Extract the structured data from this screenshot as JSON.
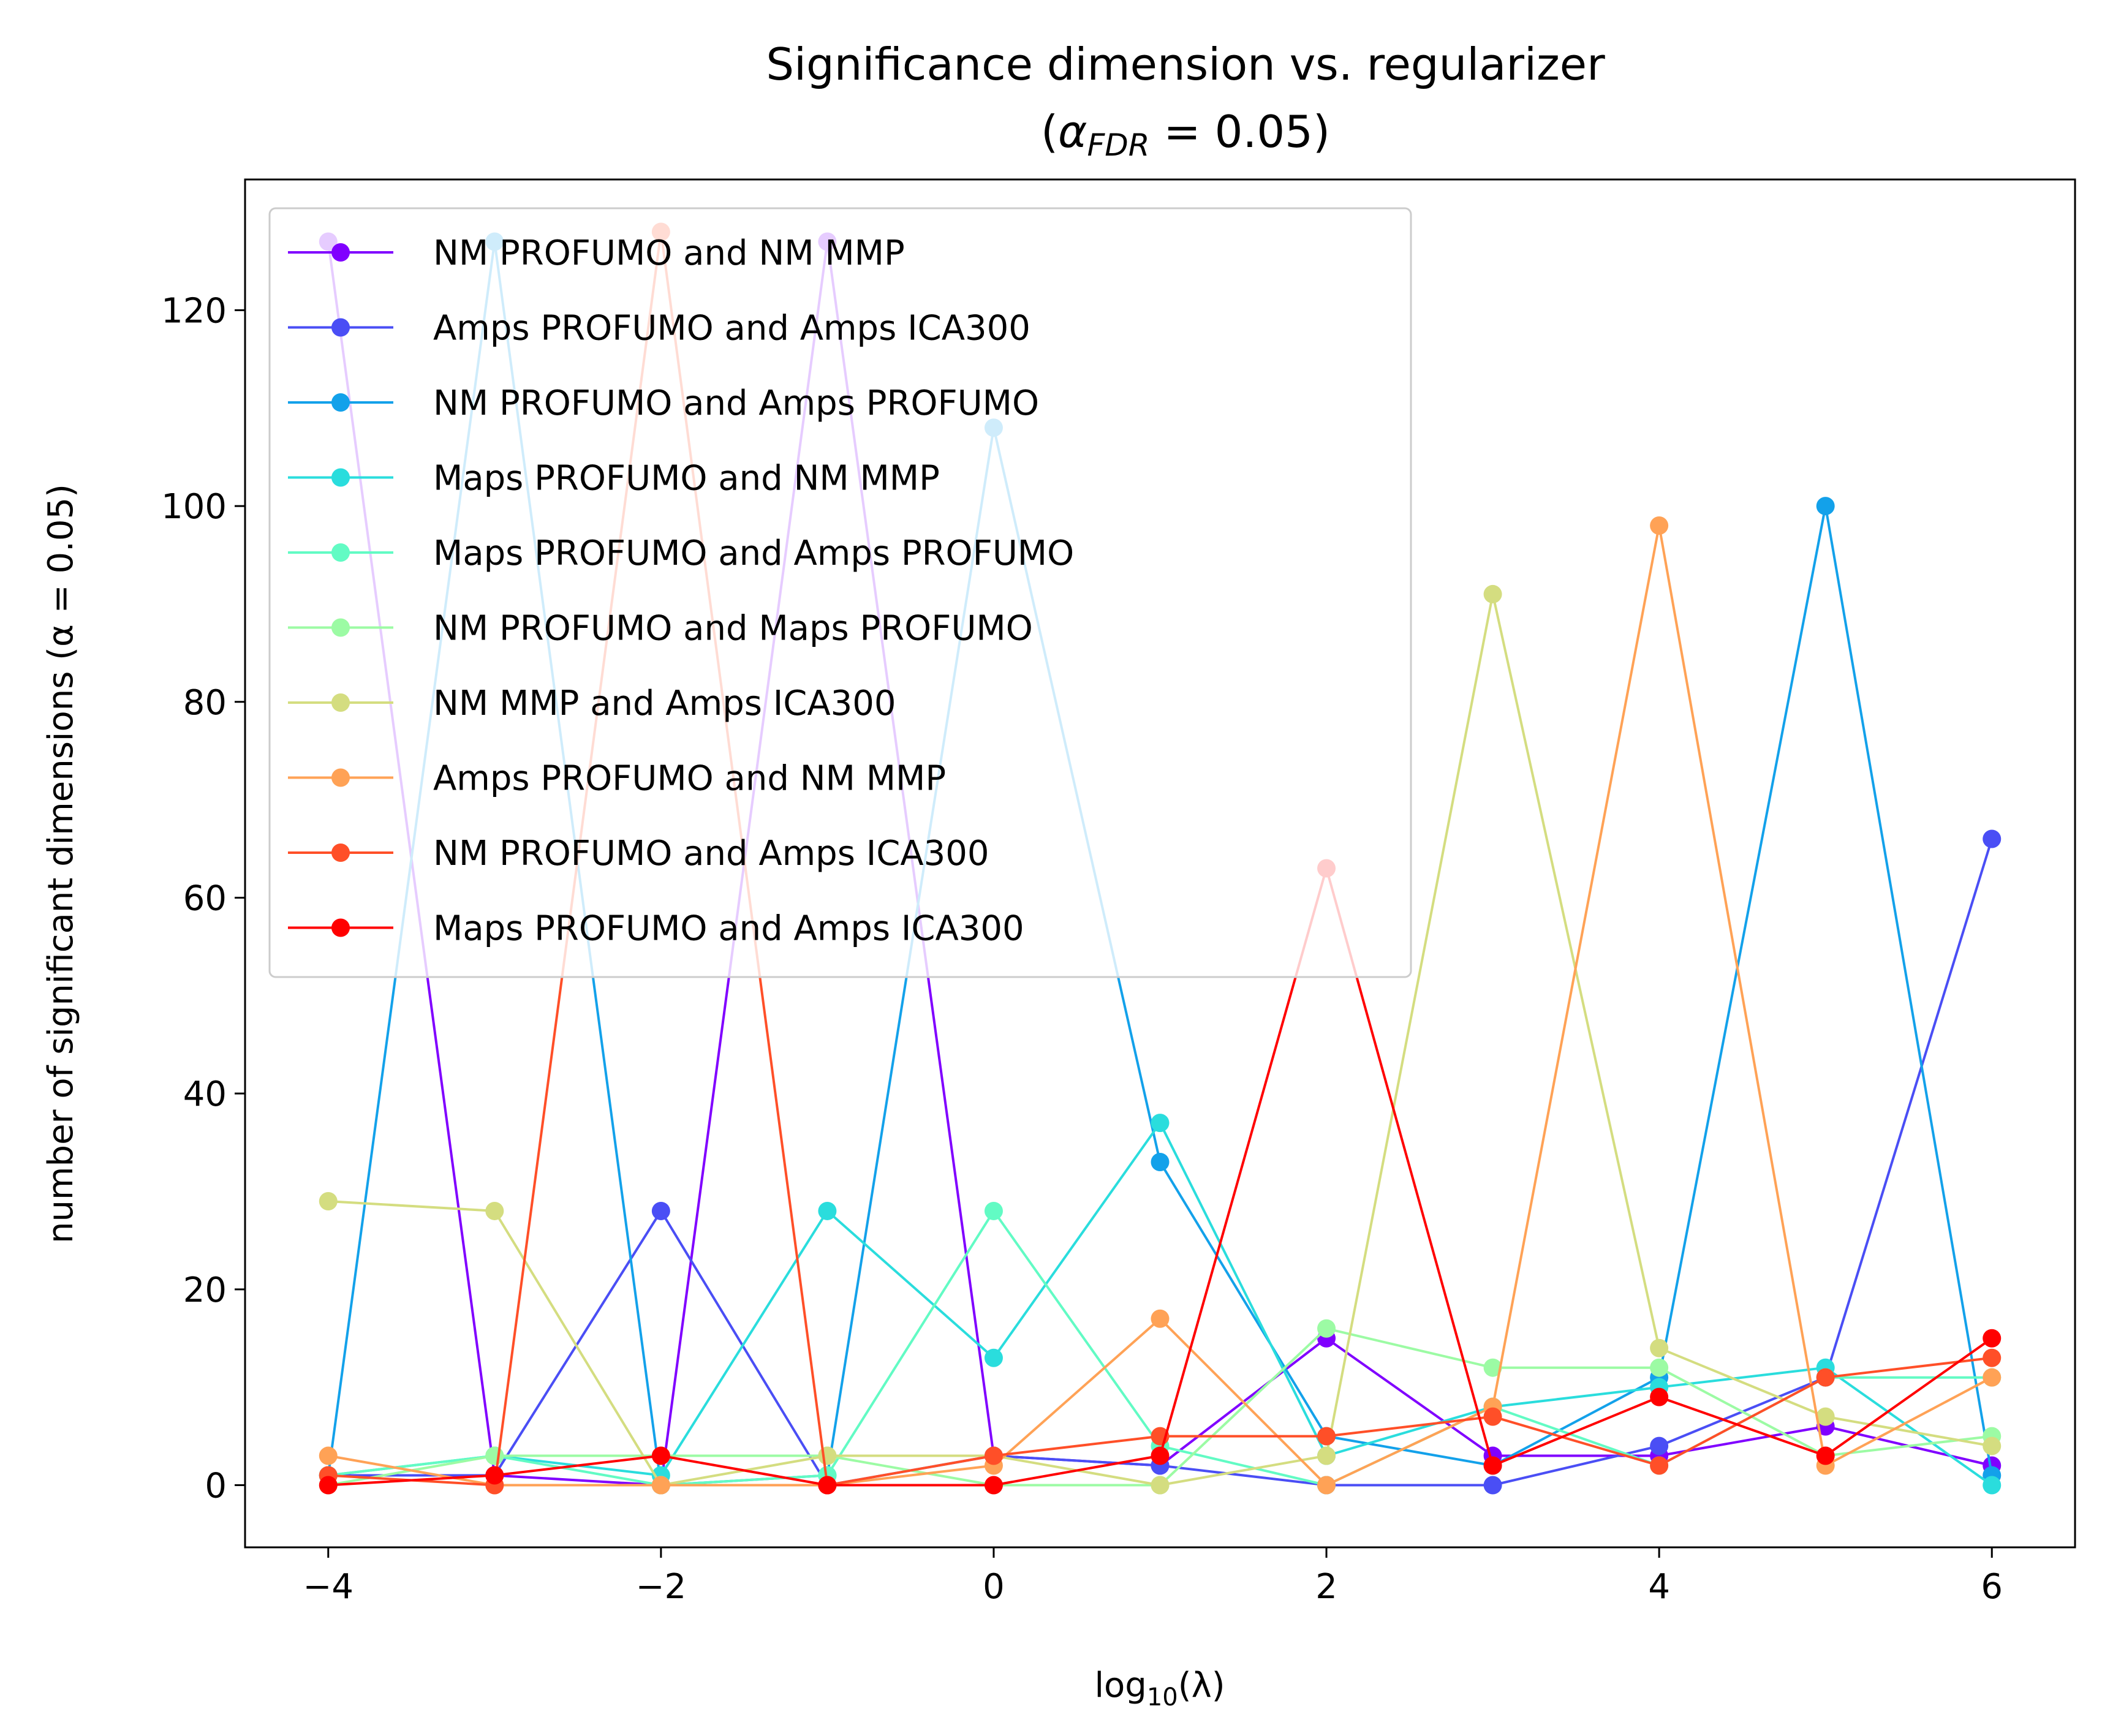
{
  "chart_data": {
    "type": "line",
    "title_line1": "Significance dimension vs. regularizer",
    "title_line2_prefix": "(",
    "title_line2_symbol": "α",
    "title_line2_subscript": "FDR",
    "title_line2_suffix": " = 0.05)",
    "xlabel_prefix": "log",
    "xlabel_subscript": "10",
    "xlabel_suffix": "(λ)",
    "ylabel": "number of significant dimensions (α = 0.05)",
    "xlim": [
      -4.5,
      6.5
    ],
    "ylim": [
      -6.35,
      133.35
    ],
    "x_ticks": [
      -4,
      -2,
      0,
      2,
      4,
      6
    ],
    "x_tick_labels": [
      "−4",
      "−2",
      "0",
      "2",
      "4",
      "6"
    ],
    "y_ticks": [
      0,
      20,
      40,
      60,
      80,
      100,
      120
    ],
    "y_tick_labels": [
      "0",
      "20",
      "40",
      "60",
      "80",
      "100",
      "120"
    ],
    "grid": false,
    "legend_position": "upper-left",
    "x": [
      -4,
      -3,
      -2,
      -1,
      0,
      1,
      2,
      3,
      4,
      5,
      6
    ],
    "series": [
      {
        "name": "NM PROFUMO and NM MMP",
        "color": "#8000ff",
        "values": [
          127,
          1,
          0,
          127,
          3,
          2,
          15,
          3,
          3,
          6,
          2
        ]
      },
      {
        "name": "Amps PROFUMO and Amps ICA300",
        "color": "#4a4ef5",
        "values": [
          1,
          1,
          28,
          0,
          3,
          2,
          0,
          0,
          4,
          11,
          66
        ]
      },
      {
        "name": "NM PROFUMO and Amps PROFUMO",
        "color": "#13a1ea",
        "values": [
          1,
          127,
          0,
          1,
          108,
          33,
          5,
          2,
          11,
          100,
          1
        ]
      },
      {
        "name": "Maps PROFUMO and NM MMP",
        "color": "#2adddd",
        "values": [
          1,
          3,
          1,
          28,
          13,
          37,
          3,
          8,
          10,
          12,
          0
        ]
      },
      {
        "name": "Maps PROFUMO and Amps PROFUMO",
        "color": "#62fbc4",
        "values": [
          1,
          3,
          0,
          1,
          28,
          4,
          0,
          8,
          2,
          11,
          11
        ]
      },
      {
        "name": "NM PROFUMO and Maps PROFUMO",
        "color": "#9cfba4",
        "values": [
          0,
          3,
          3,
          3,
          0,
          0,
          16,
          12,
          12,
          3,
          5
        ]
      },
      {
        "name": "NM MMP and Amps ICA300",
        "color": "#d4dd80",
        "values": [
          29,
          28,
          0,
          3,
          3,
          0,
          3,
          91,
          14,
          7,
          4
        ]
      },
      {
        "name": "Amps PROFUMO and NM MMP",
        "color": "#ffa256",
        "values": [
          3,
          0,
          0,
          0,
          2,
          17,
          0,
          8,
          98,
          2,
          11
        ]
      },
      {
        "name": "NM PROFUMO and Amps ICA300",
        "color": "#ff4f28",
        "values": [
          1,
          0,
          128,
          0,
          3,
          5,
          5,
          7,
          2,
          11,
          13
        ]
      },
      {
        "name": "Maps PROFUMO and Amps ICA300",
        "color": "#ff0000",
        "values": [
          0,
          1,
          3,
          0,
          0,
          3,
          63,
          2,
          9,
          3,
          15
        ]
      }
    ]
  }
}
